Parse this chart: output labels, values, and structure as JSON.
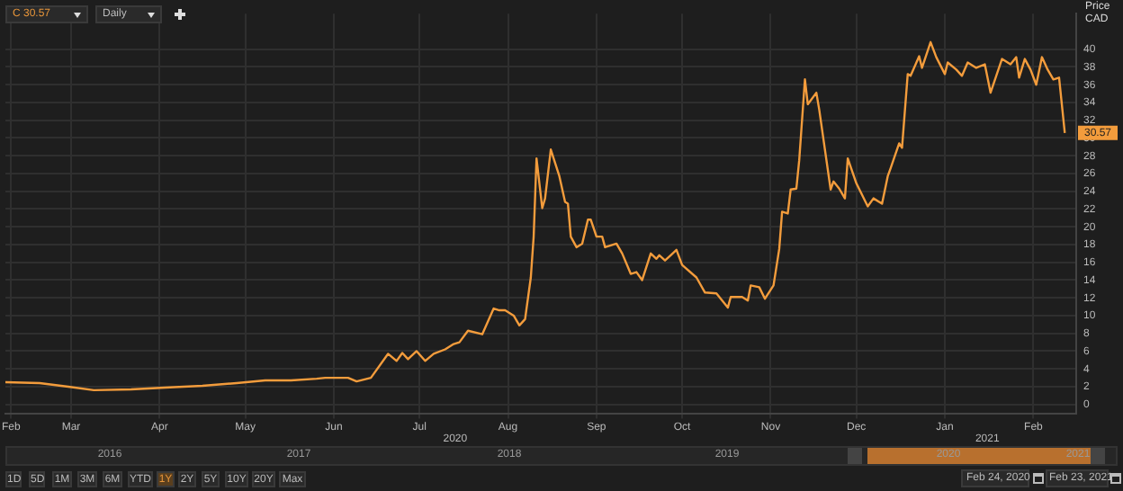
{
  "chart_data": {
    "type": "line",
    "ylabel": "Price CAD",
    "x": [
      "2020-02-07",
      "2020-02-19",
      "2020-02-29",
      "2020-03-09",
      "2020-03-22",
      "2020-04-03",
      "2020-04-16",
      "2020-04-28",
      "2020-05-08",
      "2020-05-17",
      "2020-05-26",
      "2020-05-29",
      "2020-06-06",
      "2020-06-09",
      "2020-06-14",
      "2020-06-20",
      "2020-06-23",
      "2020-06-25",
      "2020-06-27",
      "2020-06-30",
      "2020-07-03",
      "2020-07-06",
      "2020-07-10",
      "2020-07-13",
      "2020-07-15",
      "2020-07-18",
      "2020-07-23",
      "2020-07-27",
      "2020-07-29",
      "2020-07-31",
      "2020-08-03",
      "2020-08-05",
      "2020-08-07",
      "2020-08-09",
      "2020-08-10",
      "2020-08-11",
      "2020-08-13",
      "2020-08-14",
      "2020-08-16",
      "2020-08-19",
      "2020-08-21",
      "2020-08-22",
      "2020-08-23",
      "2020-08-25",
      "2020-08-27",
      "2020-08-29",
      "2020-08-30",
      "2020-09-01",
      "2020-09-03",
      "2020-09-04",
      "2020-09-08",
      "2020-09-10",
      "2020-09-13",
      "2020-09-15",
      "2020-09-17",
      "2020-09-20",
      "2020-09-22",
      "2020-09-23",
      "2020-09-25",
      "2020-09-27",
      "2020-09-29",
      "2020-10-01",
      "2020-10-06",
      "2020-10-09",
      "2020-10-13",
      "2020-10-17",
      "2020-10-18",
      "2020-10-22",
      "2020-10-24",
      "2020-10-25",
      "2020-10-28",
      "2020-10-30",
      "2020-11-02",
      "2020-11-04",
      "2020-11-05",
      "2020-11-07",
      "2020-11-08",
      "2020-11-10",
      "2020-11-11",
      "2020-11-13",
      "2020-11-14",
      "2020-11-17",
      "2020-11-18",
      "2020-11-22",
      "2020-11-23",
      "2020-11-25",
      "2020-11-27",
      "2020-11-28",
      "2020-12-01",
      "2020-12-05",
      "2020-12-07",
      "2020-12-10",
      "2020-12-12",
      "2020-12-13",
      "2020-12-16",
      "2020-12-17",
      "2020-12-19",
      "2020-12-20",
      "2020-12-23",
      "2020-12-24",
      "2020-12-27",
      "2020-12-29",
      "2021-01-01",
      "2021-01-02",
      "2021-01-05",
      "2021-01-07",
      "2021-01-09",
      "2021-01-12",
      "2021-01-15",
      "2021-01-17",
      "2021-01-19",
      "2021-01-21",
      "2021-01-24",
      "2021-01-26",
      "2021-01-27",
      "2021-01-29",
      "2021-01-31",
      "2021-02-02",
      "2021-02-04",
      "2021-02-06",
      "2021-02-08",
      "2021-02-10",
      "2021-02-12"
    ],
    "series": [
      {
        "color": "#f39c3c",
        "values": [
          2.5,
          2.4,
          2.0,
          1.6,
          1.7,
          1.9,
          2.1,
          2.4,
          2.7,
          2.7,
          2.9,
          3.0,
          3.0,
          2.6,
          3.0,
          5.7,
          4.9,
          5.8,
          5.1,
          6.0,
          4.9,
          5.7,
          6.2,
          6.8,
          7.0,
          8.3,
          7.9,
          10.8,
          10.6,
          10.6,
          10.0,
          8.9,
          9.6,
          14.3,
          18.9,
          27.7,
          22.1,
          23.2,
          28.7,
          25.7,
          22.8,
          22.6,
          18.9,
          17.7,
          18.1,
          20.8,
          20.8,
          18.9,
          18.9,
          17.7,
          18.1,
          17.0,
          14.7,
          14.9,
          14.0,
          17.0,
          16.4,
          16.8,
          16.2,
          16.8,
          17.4,
          15.7,
          14.3,
          12.6,
          12.5,
          10.9,
          12.1,
          12.1,
          11.7,
          13.4,
          13.2,
          11.9,
          13.4,
          17.5,
          21.7,
          21.5,
          24.2,
          24.3,
          27.5,
          36.6,
          33.8,
          35.1,
          33.2,
          24.2,
          25.1,
          24.3,
          23.2,
          27.7,
          24.9,
          22.3,
          23.2,
          22.6,
          25.7,
          26.6,
          29.4,
          28.9,
          37.2,
          37.0,
          39.2,
          37.9,
          40.8,
          39.1,
          37.2,
          38.5,
          37.7,
          37.0,
          38.5,
          37.9,
          38.3,
          35.1,
          37.0,
          38.9,
          38.3,
          39.1,
          36.8,
          38.9,
          37.7,
          36.0,
          39.1,
          37.7,
          36.6,
          36.8,
          30.57
        ]
      }
    ],
    "xlim": [
      "2020-02-07",
      "2021-02-16"
    ],
    "xticks": [
      {
        "value": "2020-02-09",
        "label": "Feb"
      },
      {
        "value": "2020-03-01",
        "label": "Mar"
      },
      {
        "value": "2020-04-01",
        "label": "Apr"
      },
      {
        "value": "2020-05-01",
        "label": "May"
      },
      {
        "value": "2020-06-01",
        "label": "Jun"
      },
      {
        "value": "2020-07-01",
        "label": "Jul"
      },
      {
        "value": "2020-08-01",
        "label": "Aug"
      },
      {
        "value": "2020-09-01",
        "label": "Sep"
      },
      {
        "value": "2020-10-01",
        "label": "Oct"
      },
      {
        "value": "2020-11-01",
        "label": "Nov"
      },
      {
        "value": "2020-12-01",
        "label": "Dec"
      },
      {
        "value": "2021-01-01",
        "label": "Jan"
      },
      {
        "value": "2021-02-01",
        "label": "Feb"
      }
    ],
    "ylim": [
      -1,
      44
    ],
    "yticks": [
      0,
      2,
      4,
      6,
      8,
      10,
      12,
      14,
      16,
      18,
      20,
      22,
      24,
      26,
      28,
      30,
      32,
      34,
      36,
      38,
      40
    ],
    "value_labels": [
      null,
      null,
      null,
      null,
      null,
      null,
      null,
      null,
      null,
      null,
      null,
      null,
      null,
      null,
      null,
      null,
      null,
      null,
      null,
      null,
      null,
      null,
      null,
      null,
      null,
      null,
      null,
      null,
      null,
      null,
      null,
      null,
      null,
      null,
      null,
      null,
      null,
      null,
      null,
      null,
      null,
      null,
      null,
      null,
      null,
      null,
      null,
      null,
      null,
      null,
      null,
      null,
      null,
      null,
      null,
      null,
      null,
      null,
      null,
      null,
      null,
      null,
      null,
      null,
      null,
      null,
      null,
      null,
      null,
      null,
      null,
      null,
      null,
      null,
      null,
      null,
      null,
      null,
      null,
      null,
      null,
      null,
      null,
      null,
      null,
      null,
      null,
      null,
      null,
      null,
      null,
      null,
      null,
      null,
      null,
      null,
      null,
      null,
      null,
      null,
      null,
      null,
      null,
      null,
      null,
      null,
      null,
      null,
      null,
      null,
      null,
      null,
      null,
      null,
      null,
      null,
      null,
      null,
      null,
      null,
      null,
      null,
      "30.57"
    ],
    "grid": true,
    "marker": "none",
    "line_style": "solid",
    "annotations": [
      "2020",
      "2021",
      "C 30.57",
      "Daily",
      "2016",
      "2017",
      "2018",
      "2019",
      "2020",
      "2021",
      "1D",
      "5D",
      "1M",
      "3M",
      "6M",
      "YTD",
      "1Y",
      "2Y",
      "5Y",
      "10Y",
      "20Y",
      "Max",
      "Feb 24, 2020",
      "Feb 23, 2021"
    ]
  }
}
